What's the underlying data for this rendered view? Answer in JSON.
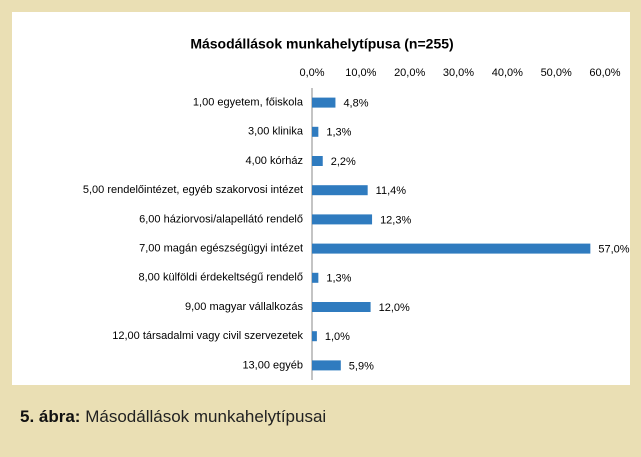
{
  "chart_data": {
    "type": "bar",
    "orientation": "horizontal",
    "title": "Másodállások munkahelytípusa (n=255)",
    "categories": [
      "1,00 egyetem, főiskola",
      "3,00 klinika",
      "4,00 kórház",
      "5,00 rendelőintézet, egyéb szakorvosi intézet",
      "6,00 háziorvosi/alapellátó rendelő",
      "7,00 magán egészségügyi intézet",
      "8,00 külföldi érdekeltségű rendelő",
      "9,00 magyar vállalkozás",
      "12,00 társadalmi vagy civil szervezetek",
      "13,00 egyéb"
    ],
    "values": [
      4.8,
      1.3,
      2.2,
      11.4,
      12.3,
      57.0,
      1.3,
      12.0,
      1.0,
      5.9
    ],
    "value_labels": [
      "4,8%",
      "1,3%",
      "2,2%",
      "11,4%",
      "12,3%",
      "57,0%",
      "1,3%",
      "12,0%",
      "1,0%",
      "5,9%"
    ],
    "color": "#2f7bbf",
    "xlim": [
      0,
      60
    ],
    "xticks": [
      {
        "value": 0,
        "label": "0,0%"
      },
      {
        "value": 10,
        "label": "10,0%"
      },
      {
        "value": 20,
        "label": "20,0%"
      },
      {
        "value": 30,
        "label": "30,0%"
      },
      {
        "value": 40,
        "label": "40,0%"
      },
      {
        "value": 50,
        "label": "50,0%"
      },
      {
        "value": 60,
        "label": "60,0%"
      }
    ],
    "grid": false
  },
  "caption": {
    "label": "5. ábra:",
    "text": "Másodállások munkahelytípusai"
  }
}
